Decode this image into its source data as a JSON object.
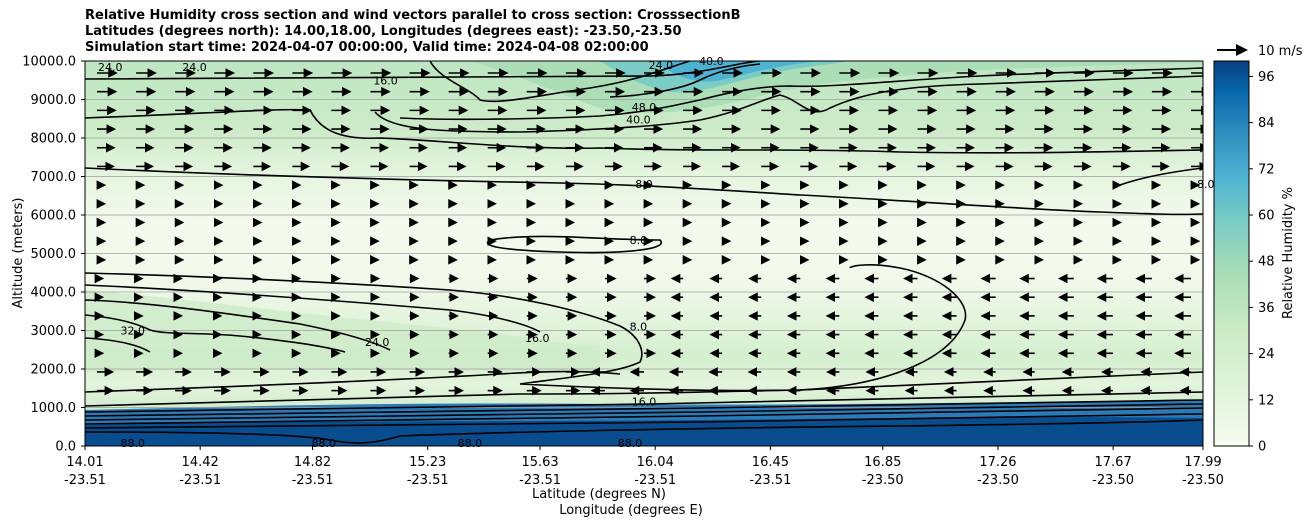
{
  "chart_data": {
    "type": "heatmap",
    "title_lines": [
      "Relative Humidity cross section and wind vectors parallel to cross section: CrosssectionB",
      "Latitudes (degrees north): 14.00,18.00, Longitudes (degrees east): -23.50,-23.50",
      "Simulation start time: 2024-04-07 00:00:00, Valid time: 2024-04-08 02:00:00"
    ],
    "ylabel": "Altitude (meters)",
    "xlabel_lat": "Latitude (degrees N)",
    "xlabel_lon": "Longitude (degrees E)",
    "ylim": [
      0,
      10000
    ],
    "y_ticks": [
      "0.0",
      "1000.0",
      "2000.0",
      "3000.0",
      "4000.0",
      "5000.0",
      "6000.0",
      "7000.0",
      "8000.0",
      "9000.0",
      "10000.0"
    ],
    "x_ticks": [
      {
        "lat": "14.01",
        "lon": "-23.51"
      },
      {
        "lat": "14.42",
        "lon": "-23.51"
      },
      {
        "lat": "14.82",
        "lon": "-23.51"
      },
      {
        "lat": "15.23",
        "lon": "-23.51"
      },
      {
        "lat": "15.63",
        "lon": "-23.51"
      },
      {
        "lat": "16.04",
        "lon": "-23.51"
      },
      {
        "lat": "16.45",
        "lon": "-23.51"
      },
      {
        "lat": "16.85",
        "lon": "-23.50"
      },
      {
        "lat": "17.26",
        "lon": "-23.50"
      },
      {
        "lat": "17.67",
        "lon": "-23.50"
      },
      {
        "lat": "17.99",
        "lon": "-23.50"
      }
    ],
    "x_range_deg": [
      14.01,
      17.99
    ],
    "colorbar": {
      "label": "Relative Humidity %",
      "range": [
        0,
        100
      ],
      "ticks": [
        "0",
        "12",
        "24",
        "36",
        "48",
        "60",
        "72",
        "84",
        "96"
      ]
    },
    "quiver_key": "10 m/s",
    "contour_labels": [
      {
        "text": "24.0",
        "lat": 14.1,
        "alt": 9850
      },
      {
        "text": "24.0",
        "lat": 14.4,
        "alt": 9850
      },
      {
        "text": "16.0",
        "lat": 15.08,
        "alt": 9500
      },
      {
        "text": "40.0",
        "lat": 15.98,
        "alt": 8480
      },
      {
        "text": "48.0",
        "lat": 16.0,
        "alt": 8800
      },
      {
        "text": "24.0",
        "lat": 16.06,
        "alt": 9900
      },
      {
        "text": "40.0",
        "lat": 16.24,
        "alt": 10000
      },
      {
        "text": "8.0",
        "lat": 16.0,
        "alt": 6800
      },
      {
        "text": "8.0",
        "lat": 18.0,
        "alt": 6800
      },
      {
        "text": "8.0",
        "lat": 15.98,
        "alt": 5350
      },
      {
        "text": "8.0",
        "lat": 15.98,
        "alt": 3100
      },
      {
        "text": "16.0",
        "lat": 15.62,
        "alt": 2800
      },
      {
        "text": "24.0",
        "lat": 15.05,
        "alt": 2700
      },
      {
        "text": "32.0",
        "lat": 14.18,
        "alt": 3000
      },
      {
        "text": "16.0",
        "lat": 16.0,
        "alt": 1150
      },
      {
        "text": "88.0",
        "lat": 14.18,
        "alt": 80
      },
      {
        "text": "88.0",
        "lat": 14.86,
        "alt": 80
      },
      {
        "text": "88.0",
        "lat": 15.38,
        "alt": 80
      },
      {
        "text": "88.0",
        "lat": 15.95,
        "alt": 80
      }
    ]
  }
}
